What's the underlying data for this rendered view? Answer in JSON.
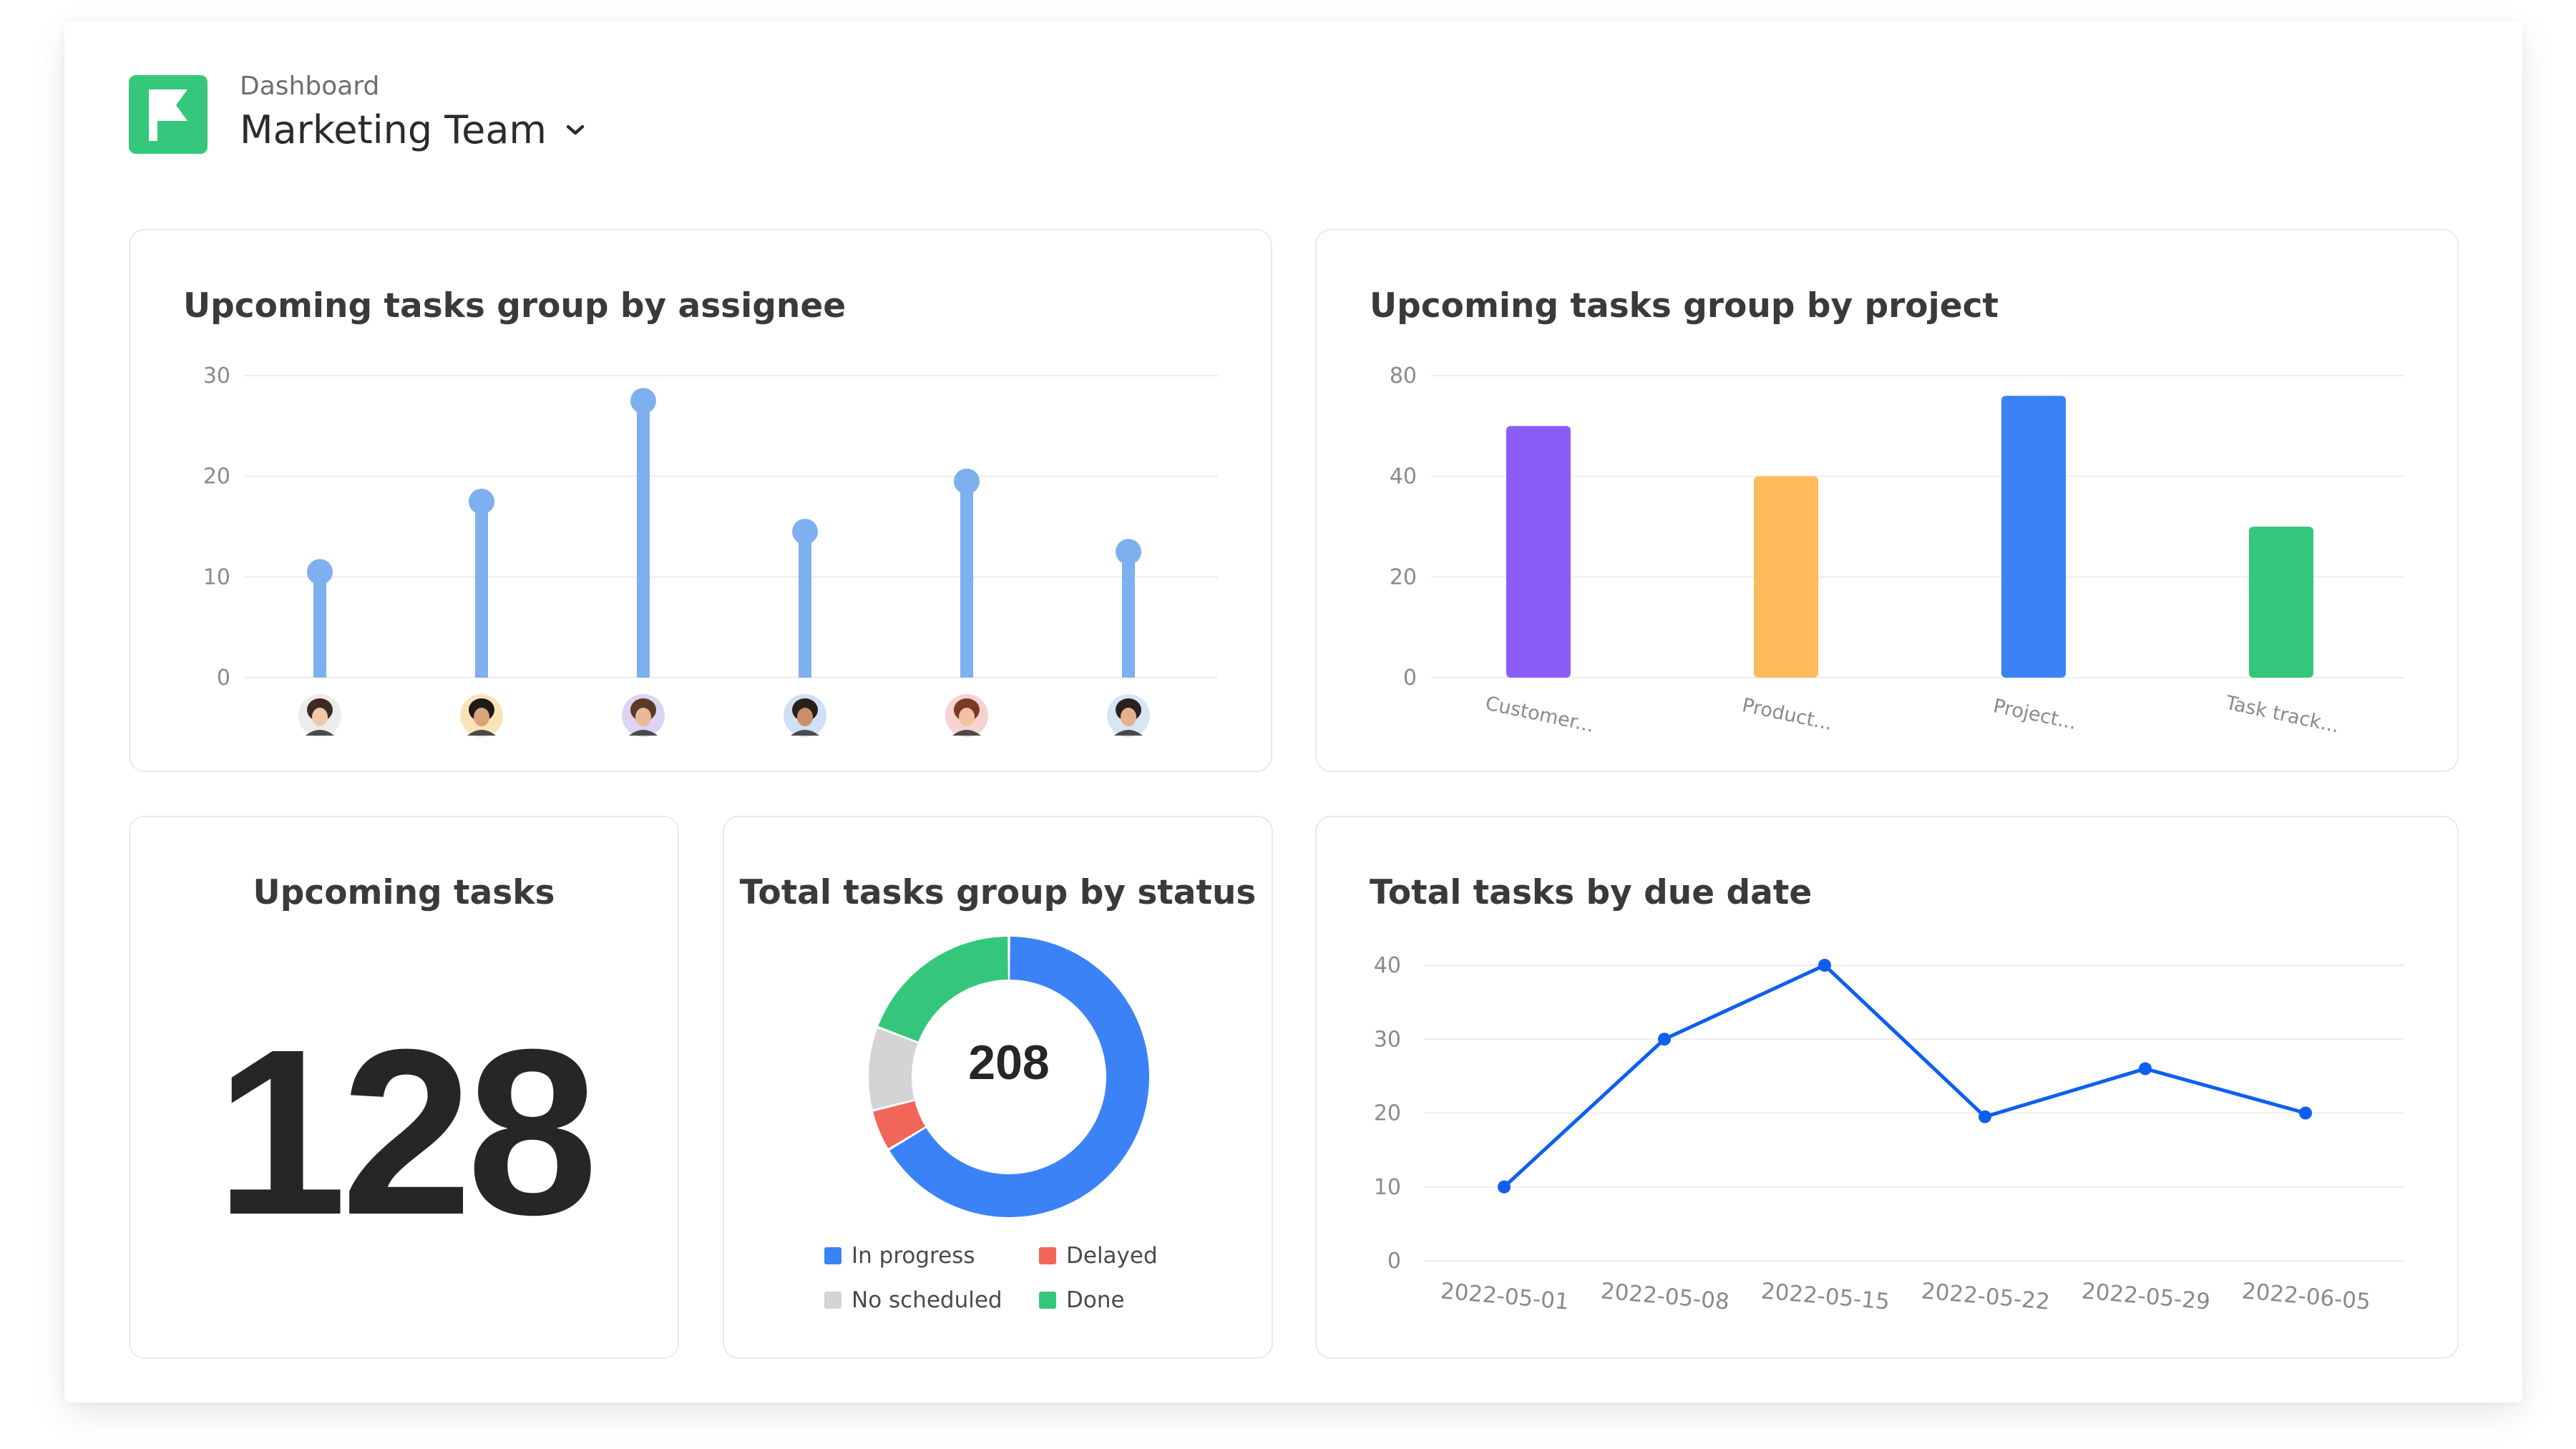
{
  "header": {
    "breadcrumb": "Dashboard",
    "title": "Marketing Team",
    "logo_icon": "flag-icon",
    "dropdown_icon": "chevron-down-icon",
    "brand_color": "#35c77b"
  },
  "cards": {
    "assignee": {
      "title": "Upcoming tasks group by assignee"
    },
    "project": {
      "title": "Upcoming tasks group by project"
    },
    "upcoming": {
      "title": "Upcoming tasks",
      "value": "128"
    },
    "status": {
      "title": "Total tasks group by status",
      "total": "208"
    },
    "due_date": {
      "title": "Total tasks by due date"
    }
  },
  "chart_data": [
    {
      "type": "bar",
      "subtype": "lollipop",
      "title": "Upcoming tasks group by assignee",
      "categories": [
        "avatar-1",
        "avatar-2",
        "avatar-3",
        "avatar-4",
        "avatar-5",
        "avatar-6"
      ],
      "values": [
        10.5,
        17.5,
        27.5,
        14.5,
        19.5,
        12.5
      ],
      "yticks": [
        "0",
        "10",
        "20",
        "30"
      ],
      "ylim": [
        0,
        30
      ],
      "color": "#7eb0f0",
      "grid": true
    },
    {
      "type": "bar",
      "title": "Upcoming tasks group by project",
      "categories": [
        "Customer...",
        "Product...",
        "Project...",
        "Task track..."
      ],
      "values": [
        50,
        40,
        56,
        30
      ],
      "colors": [
        "#8b5cf6",
        "#ffbb5c",
        "#3b82f6",
        "#34c77b"
      ],
      "yticks": [
        "0",
        "20",
        "40",
        "80"
      ],
      "ylim": [
        0,
        60
      ],
      "grid": true
    },
    {
      "type": "pie",
      "subtype": "donut",
      "title": "Total tasks group by status",
      "total_label": "208",
      "labels": [
        "In progress",
        "Delayed",
        "No scheduled",
        "Done"
      ],
      "values": [
        138,
        10,
        20,
        40
      ],
      "colors": [
        "#3b82f6",
        "#f2665a",
        "#d4d4d4",
        "#34c77b"
      ],
      "legend": "bottom"
    },
    {
      "type": "line",
      "title": "Total tasks by due date",
      "x": [
        "2022-05-01",
        "2022-05-08",
        "2022-05-15",
        "2022-05-22",
        "2022-05-29",
        "2022-06-05"
      ],
      "values": [
        10,
        30,
        40,
        19.5,
        26,
        20
      ],
      "yticks": [
        "0",
        "10",
        "20",
        "30",
        "40"
      ],
      "ylim": [
        0,
        40
      ],
      "color": "#0e5ff0",
      "grid": true
    }
  ]
}
